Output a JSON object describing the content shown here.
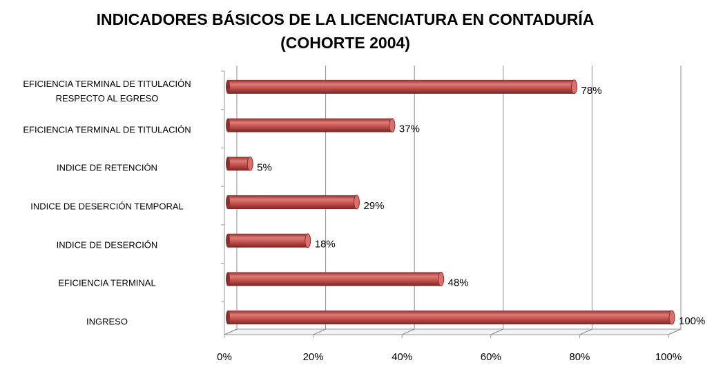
{
  "chart_data": {
    "type": "bar",
    "orientation": "horizontal",
    "title": [
      "INDICADORES BÁSICOS DE LA LICENCIATURA EN CONTADURÍA",
      "(COHORTE 2004)"
    ],
    "categories": [
      "EFICIENCIA TERMINAL DE TITULACIÓN RESPECTO AL EGRESO",
      "EFICIENCIA TERMINAL DE TITULACIÓN",
      "INDICE DE RETENCIÓN",
      "INDICE DE DESERCIÓN TEMPORAL",
      "INDICE DE DESERCIÓN",
      "EFICIENCIA TERMINAL",
      "INGRESO"
    ],
    "values": [
      78,
      37,
      5,
      29,
      18,
      48,
      100
    ],
    "value_labels": [
      "78%",
      "37%",
      "5%",
      "29%",
      "18%",
      "48%",
      "100%"
    ],
    "color": "#c0504d",
    "xlim": [
      0,
      100
    ],
    "xticks": [
      {
        "value": 0,
        "label": "0%"
      },
      {
        "value": 20,
        "label": "20%"
      },
      {
        "value": 40,
        "label": "40%"
      },
      {
        "value": 60,
        "label": "60%"
      },
      {
        "value": 80,
        "label": "80%"
      },
      {
        "value": 100,
        "label": "100%"
      }
    ],
    "grid": true
  }
}
